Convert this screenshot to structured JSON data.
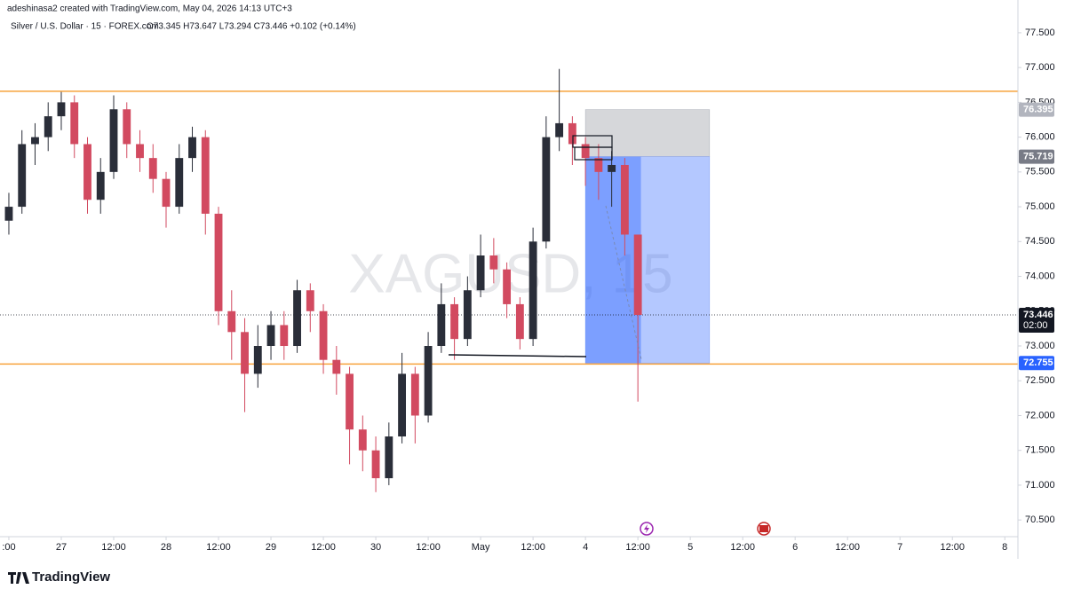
{
  "chart_data": {
    "type": "candlestick",
    "header": "adeshinasa2 created with TradingView.com, May 04, 2026 14:13 UTC+3",
    "symbol": "Silver / U.S. Dollar · 15 · FOREX.com",
    "ohlc_text": "O73.345 H73.647 L73.294 C73.446 +0.102 (+0.14%)",
    "watermark": "XAGUSD, 15",
    "brand": "TradingView",
    "x": [
      -12,
      -9,
      -6,
      -3,
      0,
      3,
      6,
      9,
      12,
      15,
      18,
      21,
      24,
      27,
      30,
      33,
      36,
      39,
      42,
      45,
      48,
      51,
      54,
      57,
      60,
      63,
      66,
      69,
      72,
      75,
      78,
      81,
      84,
      87,
      90,
      93,
      96,
      99,
      102,
      105,
      108,
      111,
      114,
      117,
      120,
      123,
      126,
      129,
      132
    ],
    "open": [
      74.8,
      75.0,
      75.9,
      76.0,
      76.3,
      76.5,
      75.9,
      75.1,
      75.5,
      76.4,
      75.9,
      75.7,
      75.4,
      75.0,
      75.7,
      76.0,
      74.9,
      73.5,
      73.2,
      72.6,
      73.0,
      73.3,
      73.0,
      73.8,
      73.5,
      72.8,
      72.6,
      71.8,
      71.5,
      71.1,
      71.7,
      72.6,
      72.0,
      73.0,
      73.6,
      73.1,
      73.8,
      74.3,
      74.1,
      73.6,
      73.1,
      74.5,
      76.0,
      76.2,
      75.9,
      75.7,
      75.5,
      75.6,
      74.6
    ],
    "high": [
      75.2,
      76.1,
      76.2,
      76.5,
      76.65,
      76.6,
      76.0,
      75.7,
      76.6,
      76.5,
      76.1,
      75.9,
      75.5,
      75.9,
      76.15,
      76.1,
      75.0,
      73.8,
      73.4,
      73.3,
      73.5,
      73.5,
      73.95,
      73.9,
      73.6,
      73.0,
      72.7,
      72.0,
      71.7,
      71.9,
      72.9,
      72.7,
      73.2,
      73.9,
      73.7,
      74.0,
      74.6,
      74.55,
      74.2,
      73.7,
      74.7,
      76.3,
      76.98,
      76.3,
      76.0,
      75.9,
      75.8,
      75.7,
      74.6
    ],
    "low": [
      74.6,
      74.9,
      75.6,
      75.8,
      76.1,
      75.7,
      74.9,
      74.9,
      75.4,
      75.7,
      75.5,
      75.2,
      74.7,
      74.9,
      75.5,
      74.6,
      73.3,
      72.8,
      72.05,
      72.4,
      72.8,
      72.8,
      72.9,
      73.2,
      72.6,
      72.3,
      71.3,
      71.2,
      70.9,
      71.0,
      71.6,
      71.6,
      71.9,
      72.9,
      72.8,
      73.0,
      73.7,
      73.9,
      73.4,
      72.95,
      73.0,
      74.4,
      75.8,
      75.6,
      75.3,
      75.1,
      75.0,
      74.3,
      72.2
    ],
    "close": [
      75.0,
      75.9,
      76.0,
      76.3,
      76.5,
      75.9,
      75.1,
      75.5,
      76.4,
      75.9,
      75.7,
      75.4,
      75.0,
      75.7,
      76.0,
      74.9,
      73.5,
      73.2,
      72.6,
      73.0,
      73.3,
      73.0,
      73.8,
      73.5,
      72.8,
      72.6,
      71.8,
      71.5,
      71.1,
      71.7,
      72.6,
      72.0,
      73.0,
      73.6,
      73.1,
      73.8,
      74.3,
      74.1,
      73.6,
      73.1,
      74.5,
      76.0,
      76.2,
      75.9,
      75.7,
      75.5,
      75.6,
      74.6,
      73.446
    ],
    "up_color": "#2a2e39",
    "down_color": "#d24a60",
    "xlim": [
      -12.4,
      219
    ],
    "xticks": [
      {
        "value": -12,
        "label": ":00"
      },
      {
        "value": 0,
        "label": "27"
      },
      {
        "value": 12,
        "label": "12:00"
      },
      {
        "value": 24,
        "label": "28"
      },
      {
        "value": 36,
        "label": "12:00"
      },
      {
        "value": 48,
        "label": "29"
      },
      {
        "value": 60,
        "label": "12:00"
      },
      {
        "value": 72,
        "label": "30"
      },
      {
        "value": 84,
        "label": "12:00"
      },
      {
        "value": 96,
        "label": "May"
      },
      {
        "value": 108,
        "label": "12:00"
      },
      {
        "value": 120,
        "label": "4"
      },
      {
        "value": 132,
        "label": "12:00"
      },
      {
        "value": 144,
        "label": "5"
      },
      {
        "value": 156,
        "label": "12:00"
      },
      {
        "value": 168,
        "label": "6"
      },
      {
        "value": 180,
        "label": "12:00"
      },
      {
        "value": 192,
        "label": "7"
      },
      {
        "value": 204,
        "label": "12:00"
      },
      {
        "value": 216,
        "label": "8"
      }
    ],
    "ylim": [
      70.26,
      77.69
    ],
    "yticks": [
      {
        "value": 70.5,
        "label": "70.500"
      },
      {
        "value": 71,
        "label": "71.000"
      },
      {
        "value": 71.5,
        "label": "71.500"
      },
      {
        "value": 72,
        "label": "72.000"
      },
      {
        "value": 72.5,
        "label": "72.500"
      },
      {
        "value": 73,
        "label": "73.000"
      },
      {
        "value": 73.5,
        "label": "73.500"
      },
      {
        "value": 74,
        "label": "74.000"
      },
      {
        "value": 74.5,
        "label": "74.500"
      },
      {
        "value": 75,
        "label": "75.000"
      },
      {
        "value": 75.5,
        "label": "75.500"
      },
      {
        "value": 76,
        "label": "76.000"
      },
      {
        "value": 76.5,
        "label": "76.500"
      },
      {
        "value": 77,
        "label": "77.000"
      },
      {
        "value": 77.5,
        "label": "77.500"
      }
    ],
    "hlines": [
      76.66,
      72.74
    ],
    "hline_color": "#f7a23b",
    "position": {
      "x": [
        120,
        148.4
      ],
      "x_now": 132.7,
      "stop": 76.395,
      "entry": 75.719,
      "target": 72.755
    },
    "price_tags": [
      {
        "value": 76.395,
        "color": "#b2b5be"
      },
      {
        "value": 75.719,
        "color": "#787b86"
      },
      {
        "value": 73.446,
        "color": "#131722",
        "note": "02:00"
      },
      {
        "value": 72.755,
        "color": "#2962ff"
      }
    ],
    "last_price": 73.446
  }
}
